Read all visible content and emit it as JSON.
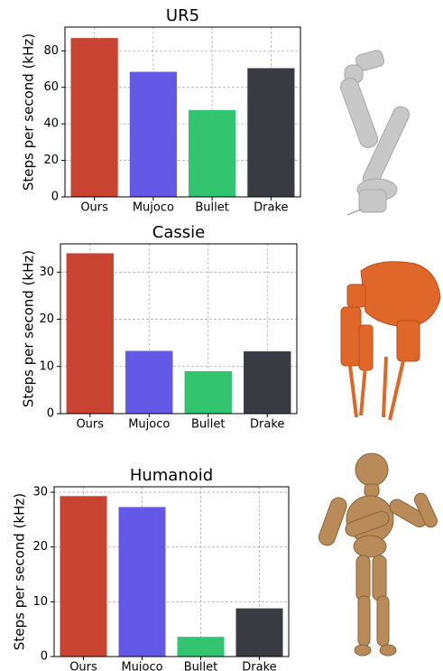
{
  "chart_data": [
    {
      "type": "bar",
      "title": "UR5",
      "ylabel": "Steps per second (kHz)",
      "categories": [
        "Ours",
        "Mujoco",
        "Bullet",
        "Drake"
      ],
      "values": [
        87,
        68.5,
        47.5,
        70.5
      ],
      "colors": [
        "#c84431",
        "#6459e6",
        "#33c46f",
        "#393a42"
      ],
      "ylim": [
        0,
        93
      ],
      "yticks": [
        0,
        20,
        40,
        60,
        80
      ],
      "grid": true
    },
    {
      "type": "bar",
      "title": "Cassie",
      "ylabel": "Steps per second (kHz)",
      "categories": [
        "Ours",
        "Mujoco",
        "Bullet",
        "Drake"
      ],
      "values": [
        34,
        13.3,
        9,
        13.2
      ],
      "colors": [
        "#c84431",
        "#6459e6",
        "#33c46f",
        "#393a42"
      ],
      "ylim": [
        0,
        36
      ],
      "yticks": [
        0,
        10,
        20,
        30
      ],
      "grid": true
    },
    {
      "type": "bar",
      "title": "Humanoid",
      "ylabel": "Steps per second (kHz)",
      "categories": [
        "Ours",
        "Mujoco",
        "Bullet",
        "Drake"
      ],
      "values": [
        29.3,
        27.3,
        3.6,
        8.8
      ],
      "colors": [
        "#c84431",
        "#6459e6",
        "#33c46f",
        "#393a42"
      ],
      "ylim": [
        0,
        31
      ],
      "yticks": [
        0,
        10,
        20,
        30
      ],
      "grid": true
    }
  ]
}
